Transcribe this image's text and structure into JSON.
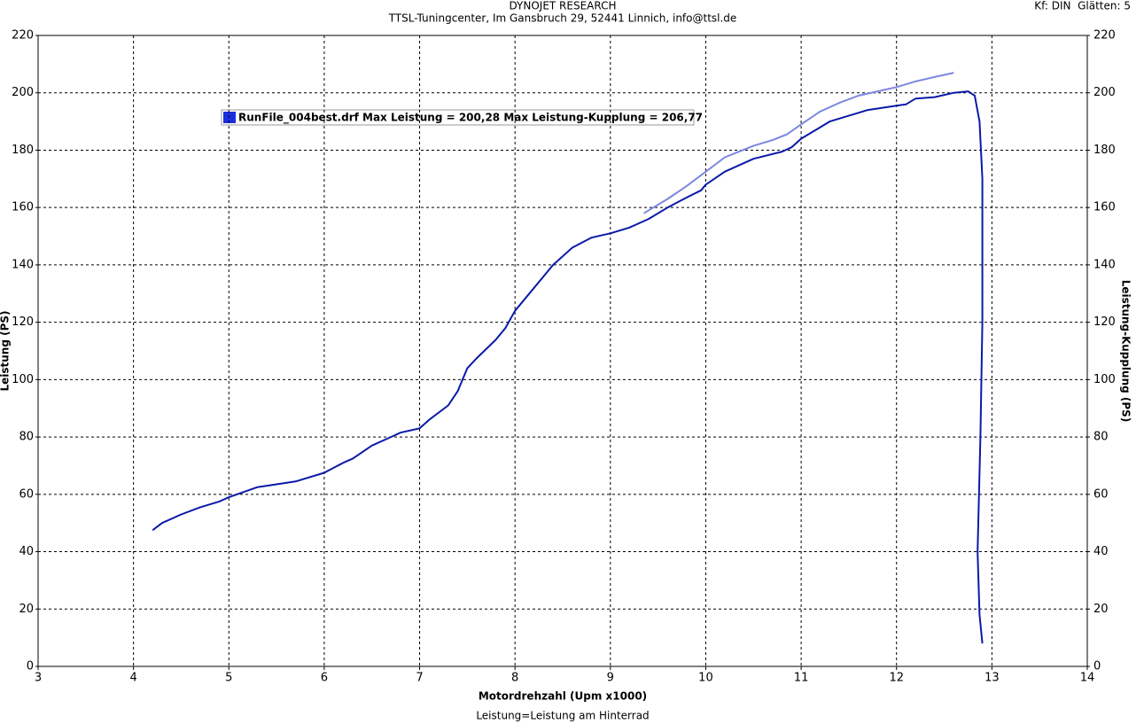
{
  "chart_data": {
    "type": "line",
    "title": "DYNOJET RESEARCH",
    "subtitle": "TTSL-Tuningcenter, Im Gansbruch 29, 52441 Linnich, info@ttsl.de",
    "corner_note": "Kf: DIN  Glätten: 5",
    "x_label": "Motordrehzahl (Upm x1000)",
    "y_label": "Leistung (PS)",
    "y2_label": "Leistung-Kupplung (PS)",
    "footer": "Leistung=Leistung am Hinterrad",
    "legend_text": "RunFile_004best.drf Max Leistung = 200,28 Max Leistung-Kupplung = 206,77",
    "xlim": [
      3,
      14
    ],
    "xticks": [
      3,
      4,
      5,
      6,
      7,
      8,
      9,
      10,
      11,
      12,
      13,
      14
    ],
    "ylim": [
      0,
      220
    ],
    "yticks": [
      0,
      20,
      40,
      60,
      80,
      100,
      120,
      140,
      160,
      180,
      200,
      220
    ],
    "y2lim": [
      0,
      220
    ],
    "y2ticks": [
      0,
      20,
      40,
      60,
      80,
      100,
      120,
      140,
      160,
      180,
      200,
      220
    ],
    "grid": true,
    "series": [
      {
        "name": "Leistung",
        "color": "#0a1aa8",
        "x": [
          4.2,
          4.3,
          4.5,
          4.7,
          4.9,
          5.0,
          5.3,
          5.5,
          5.7,
          6.0,
          6.2,
          6.3,
          6.5,
          6.7,
          6.8,
          7.0,
          7.1,
          7.3,
          7.4,
          7.5,
          7.6,
          7.8,
          7.9,
          8.0,
          8.2,
          8.4,
          8.6,
          8.8,
          9.0,
          9.2,
          9.4,
          9.6,
          9.8,
          9.95,
          10.0,
          10.2,
          10.5,
          10.8,
          10.9,
          11.0,
          11.2,
          11.3,
          11.5,
          11.7,
          11.9,
          12.0,
          12.1,
          12.2,
          12.4,
          12.6,
          12.75,
          12.82,
          12.87,
          12.9,
          12.9,
          12.88,
          12.85,
          12.87,
          12.9
        ],
        "values": [
          47.5,
          50,
          53,
          55.5,
          57.5,
          59,
          62.5,
          63.5,
          64.5,
          67.5,
          71,
          72.5,
          77,
          80,
          81.5,
          83,
          86,
          91,
          96,
          104,
          107.5,
          114,
          118,
          124,
          132,
          140,
          146,
          149.5,
          151,
          153,
          156,
          160,
          163.5,
          166,
          168,
          172.5,
          177,
          179.5,
          181,
          184,
          188,
          190,
          192,
          194,
          195,
          195.5,
          196,
          198,
          198.5,
          200,
          200.5,
          199,
          190,
          170,
          120,
          80,
          40,
          18,
          8
        ]
      },
      {
        "name": "Leistung-Kupplung",
        "color": "#7d86e0",
        "axis": "y2",
        "x": [
          9.35,
          9.6,
          9.8,
          10.0,
          10.2,
          10.5,
          10.7,
          10.85,
          11.0,
          11.2,
          11.4,
          11.6,
          11.8,
          12.0,
          12.2,
          12.4,
          12.6
        ],
        "values": [
          158,
          163,
          167.5,
          172.5,
          177.5,
          181.5,
          183.5,
          185.5,
          189,
          193.5,
          196.5,
          199,
          200.5,
          202,
          204,
          205.5,
          207
        ]
      }
    ]
  }
}
